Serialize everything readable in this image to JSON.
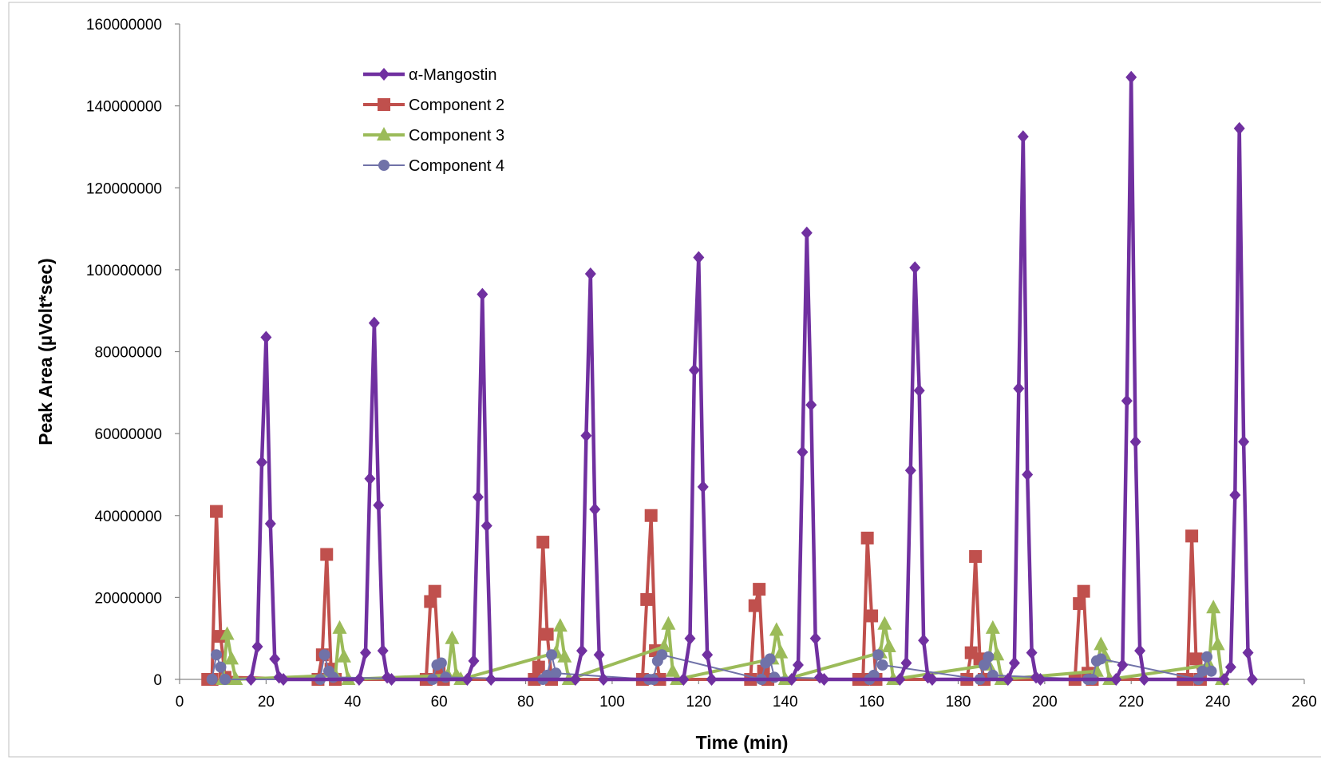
{
  "chart_data": {
    "type": "line",
    "title": "",
    "xlabel": "Time (min)",
    "ylabel": "Peak Area (µVolt*sec)",
    "xlim": [
      0,
      260
    ],
    "ylim": [
      0,
      160000000
    ],
    "x_ticks": [
      "0",
      "20",
      "40",
      "60",
      "80",
      "100",
      "120",
      "140",
      "160",
      "180",
      "200",
      "220",
      "240",
      "260"
    ],
    "y_ticks": [
      "0",
      "20000000",
      "40000000",
      "60000000",
      "80000000",
      "100000000",
      "120000000",
      "140000000",
      "160000000"
    ],
    "grid": false,
    "legend_position": "top-left",
    "colors": {
      "s1": "#7030A0",
      "s2": "#C0504D",
      "s3": "#9BBB59",
      "s4": "#7072A8"
    },
    "series": [
      {
        "name": "α-Mangostin",
        "marker": "diamond",
        "x": [
          16.5,
          18,
          19,
          20,
          21,
          22,
          23,
          24,
          41.5,
          43,
          44,
          45,
          46,
          47,
          48,
          49,
          66.5,
          68,
          69,
          70,
          71,
          72,
          91.5,
          93,
          94,
          95,
          96,
          97,
          98,
          116.5,
          118,
          119,
          120,
          121,
          122,
          123,
          141.5,
          143,
          144,
          145,
          146,
          147,
          148,
          149,
          166.5,
          168,
          169,
          170,
          171,
          172,
          173,
          174,
          191.5,
          193,
          194,
          195,
          196,
          197,
          198,
          199,
          216.5,
          218,
          219,
          220,
          221,
          222,
          223,
          241.5,
          243,
          244,
          245,
          246,
          247,
          248
        ],
        "y": [
          0,
          8000000,
          53000000,
          83500000,
          38000000,
          5000000,
          500000,
          0,
          0,
          6500000,
          49000000,
          87000000,
          42500000,
          7000000,
          500000,
          0,
          0,
          4500000,
          44500000,
          94000000,
          37500000,
          0,
          0,
          7000000,
          59500000,
          99000000,
          41500000,
          6000000,
          0,
          0,
          10000000,
          75500000,
          103000000,
          47000000,
          6000000,
          0,
          0,
          3500000,
          55500000,
          109000000,
          67000000,
          10000000,
          500000,
          0,
          0,
          4000000,
          51000000,
          100500000,
          70500000,
          9500000,
          500000,
          0,
          0,
          4000000,
          71000000,
          132500000,
          50000000,
          6500000,
          500000,
          0,
          0,
          3500000,
          68000000,
          147000000,
          58000000,
          7000000,
          0,
          0,
          3000000,
          45000000,
          134500000,
          58000000,
          6500000,
          0
        ]
      },
      {
        "name": "Component 2",
        "marker": "square",
        "x": [
          6.5,
          7.5,
          8.5,
          9.5,
          10.5,
          32,
          33,
          34,
          35,
          36,
          57,
          58,
          59,
          60,
          61,
          82,
          83,
          84,
          85,
          86,
          107,
          108,
          109,
          110,
          111,
          132,
          133,
          134,
          135,
          136,
          157,
          158,
          159,
          160,
          161,
          182,
          183,
          184,
          185,
          186,
          207,
          208,
          209,
          210,
          211,
          232,
          233,
          234,
          235,
          236
        ],
        "y": [
          0,
          0,
          41000000,
          10500000,
          500000,
          0,
          6000000,
          30500000,
          2500000,
          0,
          0,
          19000000,
          21500000,
          2000000,
          0,
          0,
          3000000,
          33500000,
          11000000,
          0,
          0,
          19500000,
          40000000,
          7000000,
          0,
          0,
          18000000,
          22000000,
          2000000,
          0,
          0,
          0,
          34500000,
          15500000,
          0,
          0,
          6500000,
          30000000,
          5000000,
          0,
          0,
          18500000,
          21500000,
          1500000,
          0,
          0,
          0,
          35000000,
          5000000,
          0
        ]
      },
      {
        "name": "Component 3",
        "marker": "triangle",
        "x": [
          10,
          11,
          12,
          13,
          36,
          37,
          38,
          39,
          62,
          63,
          64,
          65,
          87,
          88,
          89,
          90,
          112,
          113,
          114,
          115,
          137,
          138,
          139,
          140,
          162,
          163,
          164,
          165,
          187,
          188,
          189,
          190,
          212,
          213,
          214,
          215,
          238,
          239,
          240,
          241
        ],
        "y": [
          0,
          11000000,
          5000000,
          0,
          1000000,
          12500000,
          5500000,
          0,
          1000000,
          10000000,
          1000000,
          0,
          6500000,
          13000000,
          5500000,
          0,
          8000000,
          13500000,
          2000000,
          0,
          5000000,
          12000000,
          6500000,
          0,
          6500000,
          13500000,
          8000000,
          0,
          3500000,
          12500000,
          6000000,
          0,
          2000000,
          8500000,
          5500000,
          0,
          3500000,
          17500000,
          8500000,
          0
        ]
      },
      {
        "name": "Component 4",
        "marker": "circle",
        "x": [
          7.5,
          8.5,
          9.5,
          10.5,
          32.5,
          33.5,
          34.5,
          35.5,
          58.5,
          59.5,
          60.5,
          61.5,
          84,
          85,
          86,
          87,
          108.5,
          109.5,
          110.5,
          111.5,
          134.5,
          135.5,
          136.5,
          137.5,
          159.5,
          160.5,
          161.5,
          162.5,
          185,
          186,
          187,
          188,
          210,
          211,
          212,
          213,
          235.5,
          236.5,
          237.5,
          238.5
        ],
        "y": [
          0,
          6000000,
          3000000,
          0,
          0,
          6000000,
          2000000,
          500000,
          0,
          3500000,
          4000000,
          500000,
          0,
          1000000,
          6000000,
          1500000,
          0,
          0,
          4500000,
          6000000,
          0,
          4000000,
          5000000,
          500000,
          0,
          1000000,
          6000000,
          3500000,
          0,
          3500000,
          5500000,
          1000000,
          0,
          0,
          4500000,
          5000000,
          0,
          2000000,
          5500000,
          2000000
        ]
      }
    ]
  }
}
